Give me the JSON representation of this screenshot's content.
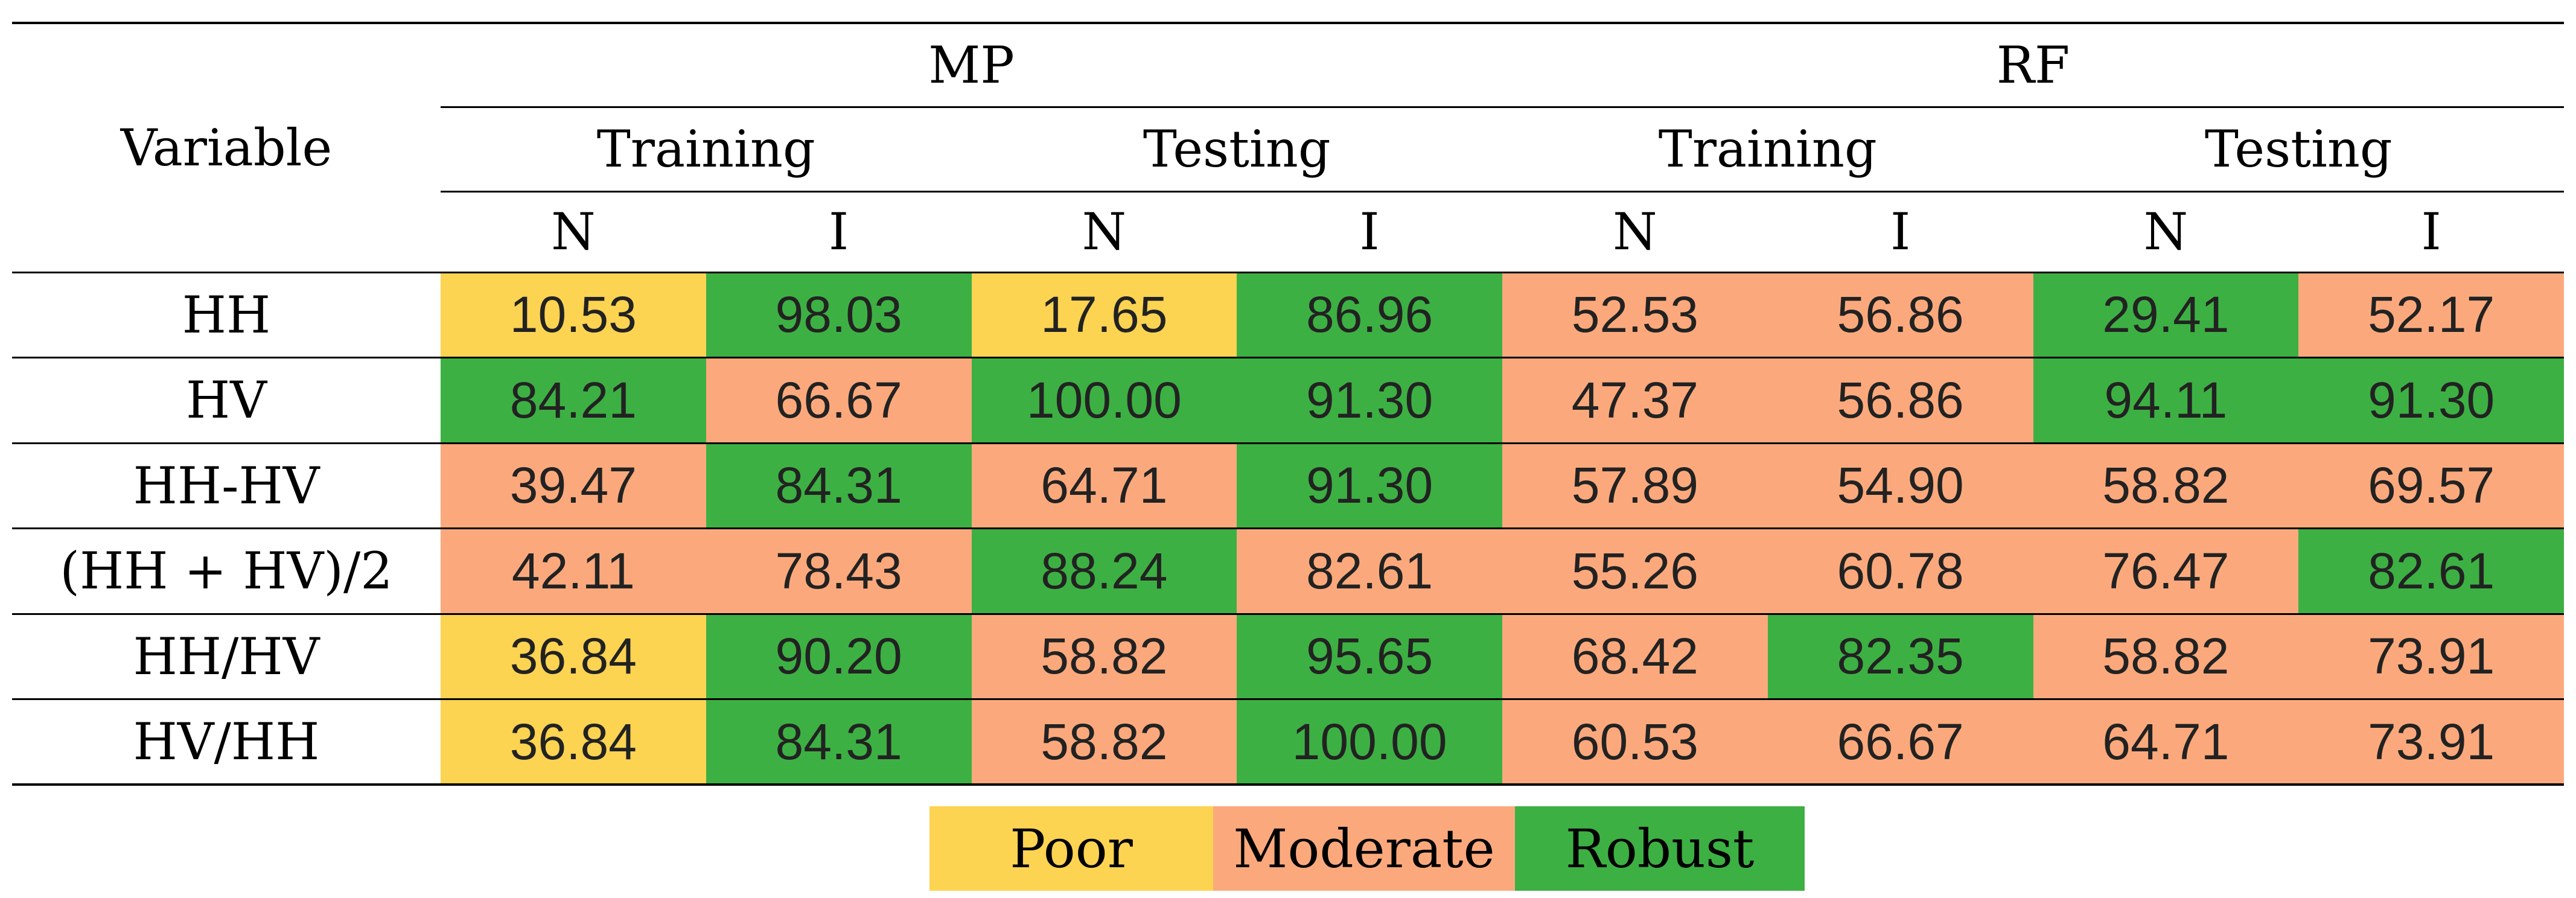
{
  "table": {
    "variable_header": "Variable",
    "groups": [
      "MP",
      "RF"
    ],
    "subgroups": [
      "Training",
      "Testing",
      "Training",
      "Testing"
    ],
    "cols": [
      "N",
      "I",
      "N",
      "I",
      "N",
      "I",
      "N",
      "I"
    ],
    "rows": [
      {
        "label": "HH",
        "values": [
          "10.53",
          "98.03",
          "17.65",
          "86.96",
          "52.53",
          "56.86",
          "29.41",
          "52.17"
        ],
        "classes": [
          "poor",
          "robust",
          "poor",
          "robust",
          "moderate",
          "moderate",
          "robust",
          "moderate"
        ]
      },
      {
        "label": "HV",
        "values": [
          "84.21",
          "66.67",
          "100.00",
          "91.30",
          "47.37",
          "56.86",
          "94.11",
          "91.30"
        ],
        "classes": [
          "robust",
          "moderate",
          "robust",
          "robust",
          "moderate",
          "moderate",
          "robust",
          "robust"
        ]
      },
      {
        "label": "HH-HV",
        "values": [
          "39.47",
          "84.31",
          "64.71",
          "91.30",
          "57.89",
          "54.90",
          "58.82",
          "69.57"
        ],
        "classes": [
          "moderate",
          "robust",
          "moderate",
          "robust",
          "moderate",
          "moderate",
          "moderate",
          "moderate"
        ]
      },
      {
        "label": "(HH + HV)/2",
        "values": [
          "42.11",
          "78.43",
          "88.24",
          "82.61",
          "55.26",
          "60.78",
          "76.47",
          "82.61"
        ],
        "classes": [
          "moderate",
          "moderate",
          "robust",
          "moderate",
          "moderate",
          "moderate",
          "moderate",
          "robust"
        ]
      },
      {
        "label": "HH/HV",
        "values": [
          "36.84",
          "90.20",
          "58.82",
          "95.65",
          "68.42",
          "82.35",
          "58.82",
          "73.91"
        ],
        "classes": [
          "poor",
          "robust",
          "moderate",
          "robust",
          "moderate",
          "robust",
          "moderate",
          "moderate"
        ]
      },
      {
        "label": "HV/HH",
        "values": [
          "36.84",
          "84.31",
          "58.82",
          "100.00",
          "60.53",
          "66.67",
          "64.71",
          "73.91"
        ],
        "classes": [
          "poor",
          "robust",
          "moderate",
          "robust",
          "moderate",
          "moderate",
          "moderate",
          "moderate"
        ]
      }
    ]
  },
  "legend": [
    "Poor",
    "Moderate",
    "Robust"
  ],
  "colors": {
    "poor": "#fdd352",
    "moderate": "#fba97c",
    "robust": "#3db043"
  }
}
